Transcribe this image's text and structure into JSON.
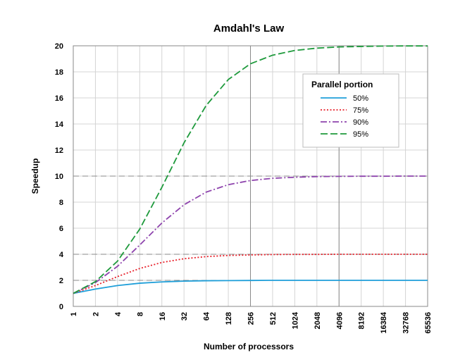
{
  "chart_data": {
    "type": "line",
    "title": "Amdahl's Law",
    "xlabel": "Number of processors",
    "ylabel": "Speedup",
    "x_scale": "log2",
    "x": [
      1,
      2,
      4,
      8,
      16,
      32,
      64,
      128,
      256,
      512,
      1024,
      2048,
      4096,
      8192,
      16384,
      32768,
      65536
    ],
    "x_tick_labels": [
      "1",
      "2",
      "4",
      "8",
      "16",
      "32",
      "64",
      "128",
      "256",
      "512",
      "1024",
      "2048",
      "4096",
      "8192",
      "16384",
      "32768",
      "65536"
    ],
    "ylim": [
      0,
      20
    ],
    "y_ticks": [
      0,
      2,
      4,
      6,
      8,
      10,
      12,
      14,
      16,
      18,
      20
    ],
    "grid": true,
    "legend": {
      "title": "Parallel portion",
      "position": "top-right"
    },
    "series": [
      {
        "name": "50%",
        "color": "#1f9fd9",
        "style": "solid",
        "values": [
          1.0,
          1.33,
          1.6,
          1.78,
          1.88,
          1.94,
          1.97,
          1.98,
          1.99,
          2.0,
          2.0,
          2.0,
          2.0,
          2.0,
          2.0,
          2.0,
          2.0
        ]
      },
      {
        "name": "75%",
        "color": "#e8202a",
        "style": "dotted",
        "values": [
          1.0,
          1.6,
          2.29,
          2.91,
          3.37,
          3.66,
          3.82,
          3.91,
          3.95,
          3.98,
          3.99,
          3.99,
          4.0,
          4.0,
          4.0,
          4.0,
          4.0
        ]
      },
      {
        "name": "90%",
        "color": "#8e44ad",
        "style": "dashdot",
        "values": [
          1.0,
          1.82,
          3.08,
          4.71,
          6.4,
          7.8,
          8.77,
          9.34,
          9.66,
          9.83,
          9.91,
          9.96,
          9.98,
          9.99,
          9.99,
          10.0,
          10.0
        ]
      },
      {
        "name": "95%",
        "color": "#1e9a3c",
        "style": "dashed",
        "values": [
          1.0,
          1.9,
          3.48,
          5.93,
          9.14,
          12.55,
          15.42,
          17.41,
          18.62,
          19.28,
          19.64,
          19.82,
          19.91,
          19.95,
          19.98,
          19.99,
          19.99
        ]
      }
    ]
  }
}
